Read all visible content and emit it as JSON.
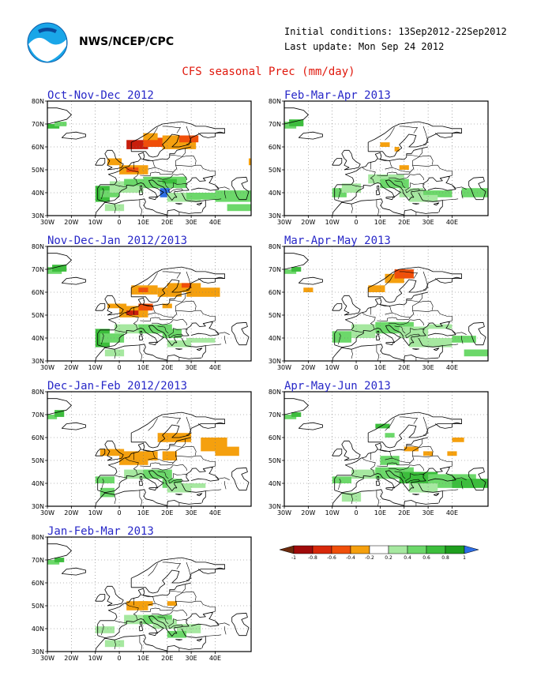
{
  "header": {
    "org": "NWS/NCEP/CPC",
    "initial_conditions": "Initial conditions: 13Sep2012-22Sep2012",
    "last_update": "Last update: Mon Sep 24 2012",
    "main_title": "CFS seasonal Prec (mm/day)"
  },
  "axes": {
    "lat_labels": [
      "80N",
      "70N",
      "60N",
      "50N",
      "40N",
      "30N"
    ],
    "lon_labels": [
      "30W",
      "20W",
      "10W",
      "0",
      "10E",
      "20E",
      "30E",
      "40E"
    ]
  },
  "panels": [
    {
      "id": "p1",
      "title": "Oct-Nov-Dec 2012"
    },
    {
      "id": "p2",
      "title": "Feb-Mar-Apr 2013"
    },
    {
      "id": "p3",
      "title": "Nov-Dec-Jan 2012/2013"
    },
    {
      "id": "p4",
      "title": "Mar-Apr-May 2013"
    },
    {
      "id": "p5",
      "title": "Dec-Jan-Feb 2012/2013"
    },
    {
      "id": "p6",
      "title": "Apr-May-Jun 2013"
    },
    {
      "id": "p7",
      "title": "Jan-Feb-Mar 2013"
    }
  ],
  "colorbar": {
    "tick_labels": [
      "-1",
      "-0.8",
      "-0.6",
      "-0.4",
      "-0.2",
      "0.2",
      "0.4",
      "0.6",
      "0.8",
      "1"
    ],
    "colors": [
      "#6b2a0c",
      "#a00a0a",
      "#d8280a",
      "#f04f0a",
      "#f5a00e",
      "#ffffff",
      "#a6e8a0",
      "#6cd86a",
      "#3cbe3c",
      "#1e9e1e",
      "#2d6ee6"
    ]
  },
  "colors": {
    "title_red": "#e0180c",
    "panel_title_blue": "#2828c8",
    "dry_orange": "#f5a00e",
    "dry_darkorange": "#f04f0a",
    "dry_red": "#c81e0c",
    "wet_light": "#a6e8a0",
    "wet_mid": "#6cd86a",
    "wet_dark": "#3cbe3c",
    "wet_blue": "#2d6ee6"
  }
}
